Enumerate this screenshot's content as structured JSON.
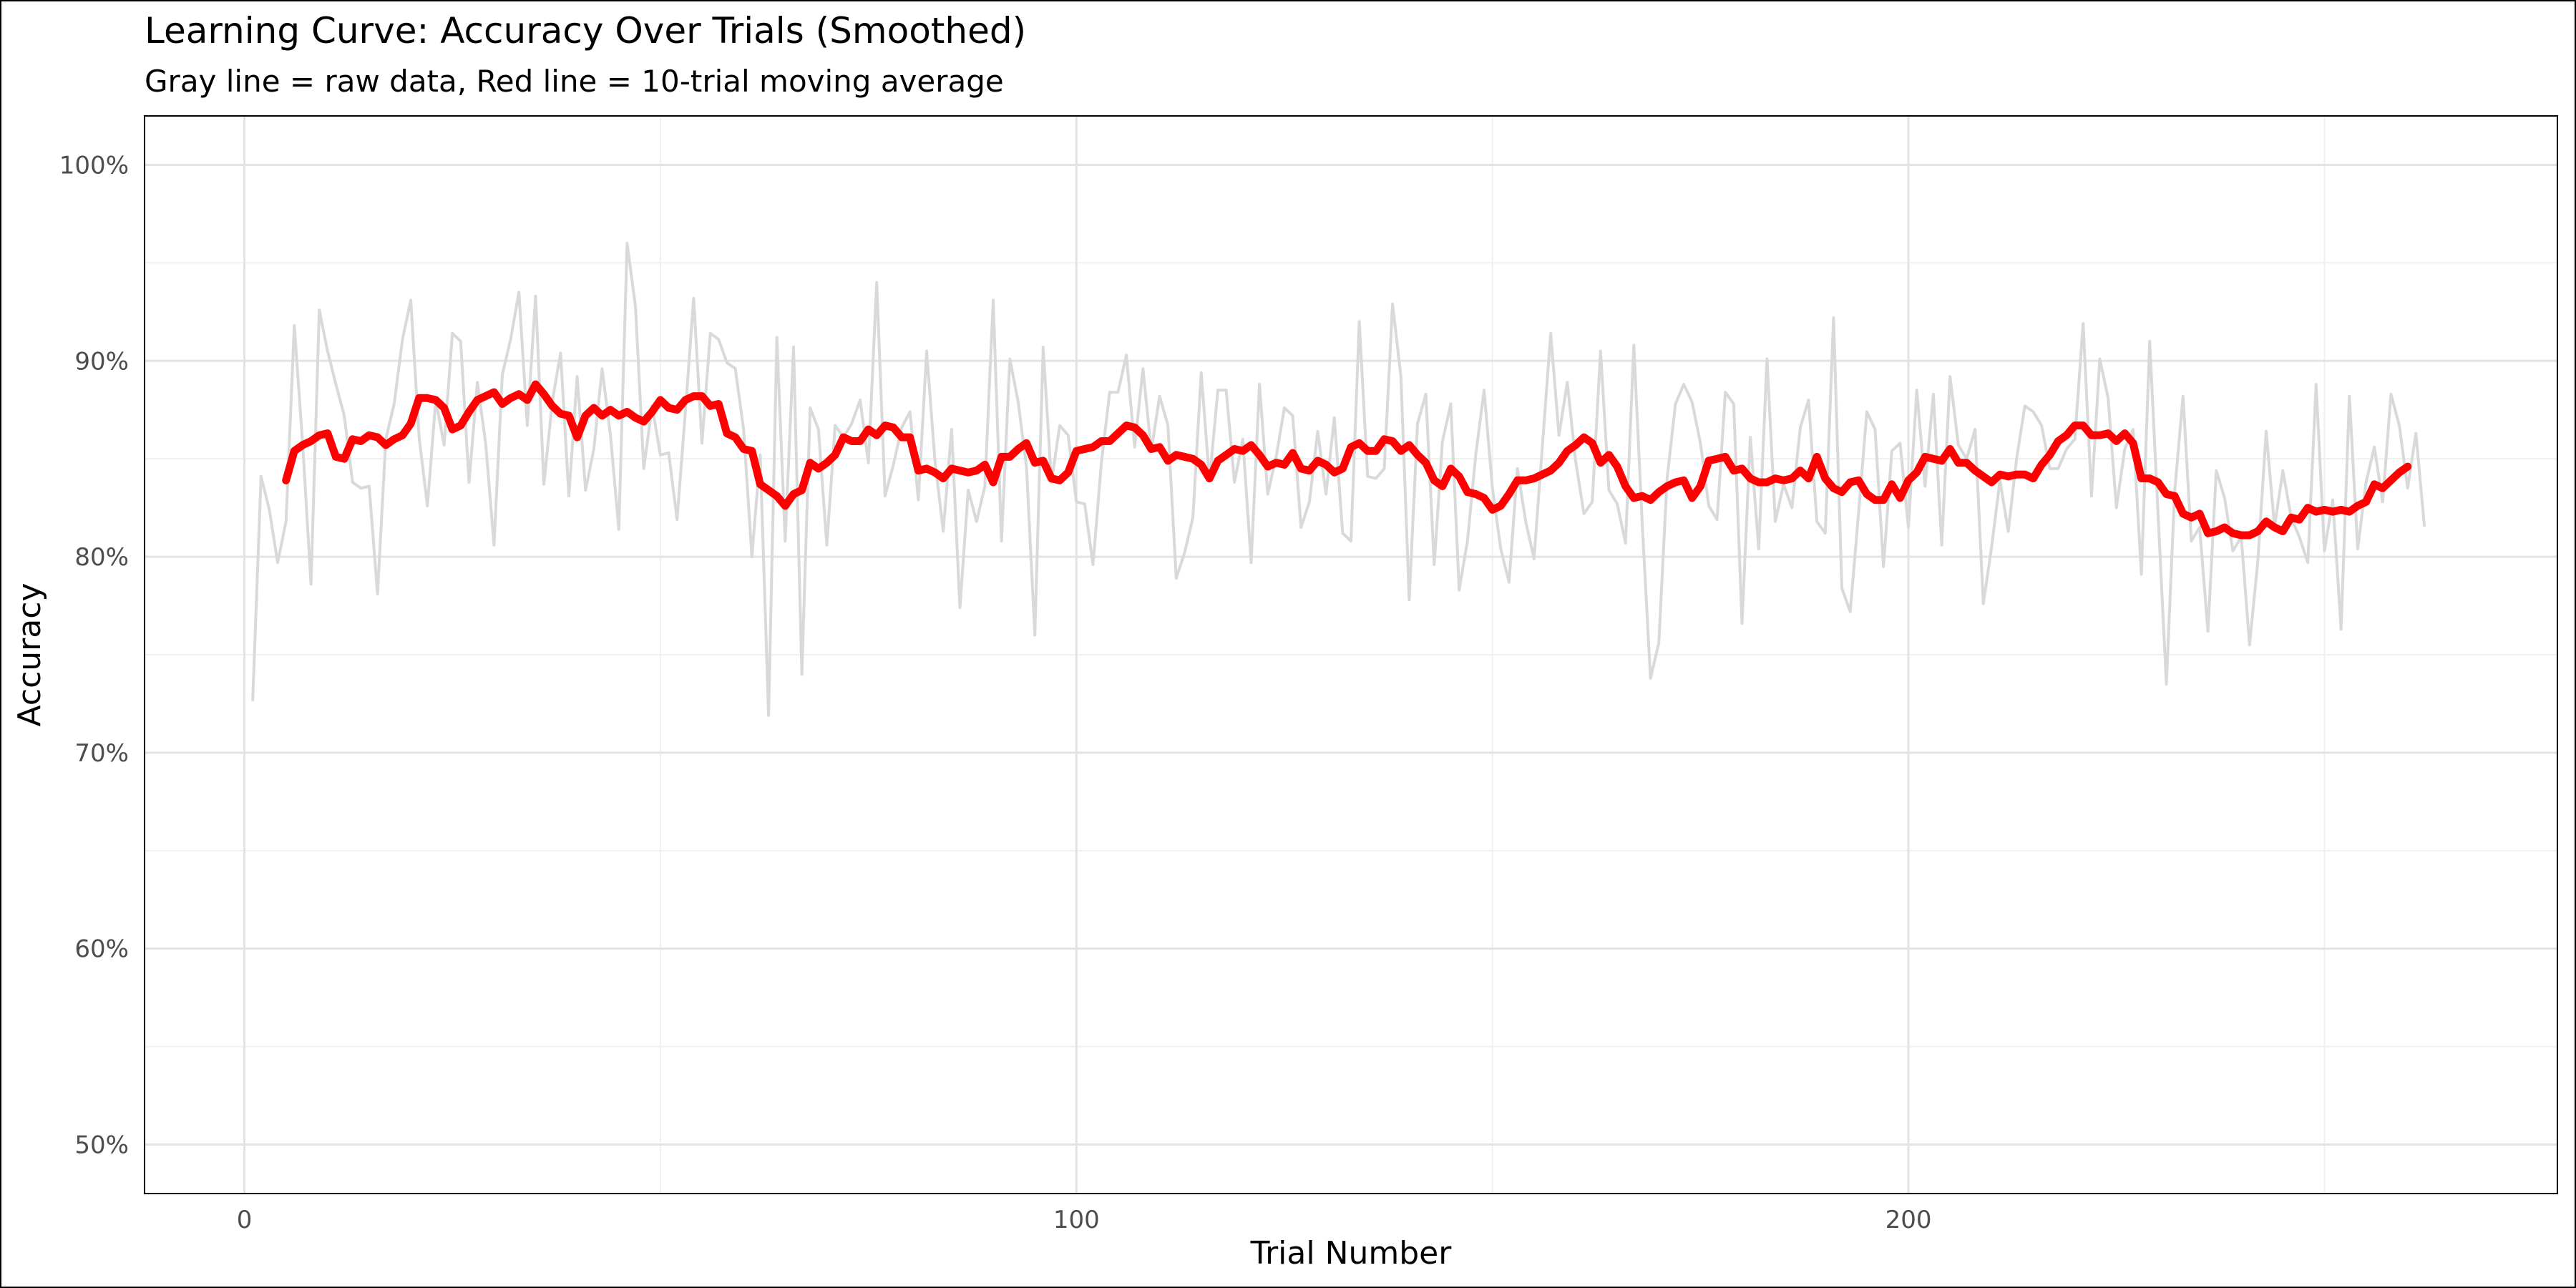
{
  "chart_data": {
    "type": "line",
    "title": "Learning Curve: Accuracy Over Trials (Smoothed)",
    "subtitle": "Gray line = raw data, Red line = 10-trial moving average",
    "xlabel": "Trial Number",
    "ylabel": "Accuracy",
    "xlim": [
      -12,
      278
    ],
    "ylim": [
      0.475,
      1.025
    ],
    "x_ticks": [
      0,
      100,
      200
    ],
    "x_tick_labels": [
      "0",
      "100",
      "200"
    ],
    "y_ticks": [
      0.5,
      0.6,
      0.7,
      0.8,
      0.9,
      1.0
    ],
    "y_tick_labels": [
      "50%",
      "60%",
      "70%",
      "80%",
      "90%",
      "100%"
    ],
    "grid": true,
    "series": [
      {
        "role": "raw",
        "color": "#d9d9d9",
        "x_start": 1,
        "values": [
          0.727,
          0.841,
          0.824,
          0.797,
          0.818,
          0.918,
          0.858,
          0.786,
          0.926,
          0.905,
          0.888,
          0.872,
          0.838,
          0.835,
          0.836,
          0.781,
          0.86,
          0.878,
          0.911,
          0.931,
          0.861,
          0.826,
          0.88,
          0.857,
          0.914,
          0.91,
          0.838,
          0.889,
          0.858,
          0.806,
          0.893,
          0.911,
          0.935,
          0.867,
          0.933,
          0.837,
          0.879,
          0.904,
          0.831,
          0.892,
          0.834,
          0.855,
          0.896,
          0.862,
          0.814,
          0.96,
          0.928,
          0.845,
          0.877,
          0.852,
          0.853,
          0.819,
          0.874,
          0.932,
          0.858,
          0.914,
          0.911,
          0.899,
          0.896,
          0.865,
          0.8,
          0.852,
          0.719,
          0.912,
          0.808,
          0.907,
          0.74,
          0.876,
          0.865,
          0.806,
          0.867,
          0.861,
          0.868,
          0.88,
          0.848,
          0.94,
          0.831,
          0.847,
          0.866,
          0.874,
          0.829,
          0.905,
          0.849,
          0.813,
          0.865,
          0.774,
          0.834,
          0.818,
          0.836,
          0.931,
          0.808,
          0.901,
          0.879,
          0.846,
          0.76,
          0.907,
          0.838,
          0.867,
          0.862,
          0.828,
          0.827,
          0.796,
          0.848,
          0.884,
          0.884,
          0.903,
          0.856,
          0.896,
          0.854,
          0.882,
          0.867,
          0.789,
          0.802,
          0.82,
          0.894,
          0.839,
          0.885,
          0.885,
          0.838,
          0.86,
          0.797,
          0.888,
          0.832,
          0.851,
          0.876,
          0.872,
          0.815,
          0.828,
          0.864,
          0.832,
          0.871,
          0.812,
          0.808,
          0.92,
          0.841,
          0.84,
          0.845,
          0.929,
          0.892,
          0.778,
          0.868,
          0.883,
          0.796,
          0.859,
          0.878,
          0.783,
          0.808,
          0.852,
          0.885,
          0.835,
          0.804,
          0.787,
          0.845,
          0.818,
          0.799,
          0.856,
          0.914,
          0.862,
          0.889,
          0.849,
          0.822,
          0.828,
          0.905,
          0.834,
          0.827,
          0.807,
          0.908,
          0.817,
          0.738,
          0.756,
          0.84,
          0.878,
          0.888,
          0.879,
          0.858,
          0.826,
          0.819,
          0.884,
          0.878,
          0.766,
          0.861,
          0.804,
          0.901,
          0.818,
          0.837,
          0.825,
          0.866,
          0.88,
          0.818,
          0.812,
          0.922,
          0.784,
          0.772,
          0.822,
          0.874,
          0.865,
          0.795,
          0.854,
          0.858,
          0.815,
          0.885,
          0.836,
          0.883,
          0.806,
          0.892,
          0.857,
          0.85,
          0.865,
          0.776,
          0.805,
          0.839,
          0.813,
          0.85,
          0.877,
          0.874,
          0.867,
          0.845,
          0.845,
          0.855,
          0.86,
          0.919,
          0.831,
          0.901,
          0.881,
          0.825,
          0.855,
          0.865,
          0.791,
          0.91,
          0.822,
          0.735,
          0.833,
          0.882,
          0.808,
          0.815,
          0.762,
          0.844,
          0.83,
          0.803,
          0.81,
          0.755,
          0.798,
          0.864,
          0.815,
          0.844,
          0.82,
          0.81,
          0.797,
          0.888,
          0.803,
          0.829,
          0.763,
          0.882,
          0.804,
          0.838,
          0.856,
          0.828,
          0.883,
          0.867,
          0.835,
          0.863,
          0.816
        ]
      },
      {
        "role": "moving_average",
        "color": "#ff0000",
        "x_start": 5,
        "values": [
          0.839,
          0.854,
          0.857,
          0.859,
          0.862,
          0.863,
          0.851,
          0.85,
          0.86,
          0.859,
          0.862,
          0.861,
          0.857,
          0.86,
          0.862,
          0.868,
          0.881,
          0.881,
          0.88,
          0.876,
          0.865,
          0.867,
          0.874,
          0.88,
          0.882,
          0.884,
          0.878,
          0.881,
          0.883,
          0.88,
          0.888,
          0.883,
          0.877,
          0.873,
          0.872,
          0.861,
          0.872,
          0.876,
          0.872,
          0.875,
          0.872,
          0.874,
          0.871,
          0.869,
          0.874,
          0.88,
          0.876,
          0.875,
          0.88,
          0.882,
          0.882,
          0.877,
          0.878,
          0.863,
          0.861,
          0.855,
          0.854,
          0.837,
          0.834,
          0.831,
          0.826,
          0.832,
          0.834,
          0.848,
          0.845,
          0.848,
          0.852,
          0.861,
          0.859,
          0.859,
          0.865,
          0.862,
          0.867,
          0.866,
          0.861,
          0.861,
          0.844,
          0.845,
          0.843,
          0.84,
          0.845,
          0.844,
          0.843,
          0.844,
          0.847,
          0.838,
          0.851,
          0.851,
          0.855,
          0.858,
          0.848,
          0.849,
          0.84,
          0.839,
          0.843,
          0.854,
          0.855,
          0.856,
          0.859,
          0.859,
          0.863,
          0.867,
          0.866,
          0.862,
          0.855,
          0.856,
          0.849,
          0.852,
          0.851,
          0.85,
          0.847,
          0.84,
          0.849,
          0.852,
          0.855,
          0.854,
          0.857,
          0.852,
          0.846,
          0.848,
          0.847,
          0.853,
          0.845,
          0.844,
          0.849,
          0.847,
          0.843,
          0.845,
          0.856,
          0.858,
          0.854,
          0.854,
          0.86,
          0.859,
          0.854,
          0.857,
          0.852,
          0.848,
          0.839,
          0.836,
          0.845,
          0.841,
          0.833,
          0.832,
          0.83,
          0.824,
          0.826,
          0.832,
          0.839,
          0.839,
          0.84,
          0.842,
          0.844,
          0.848,
          0.854,
          0.857,
          0.861,
          0.858,
          0.848,
          0.852,
          0.846,
          0.836,
          0.83,
          0.831,
          0.829,
          0.833,
          0.836,
          0.838,
          0.839,
          0.83,
          0.836,
          0.849,
          0.85,
          0.851,
          0.844,
          0.845,
          0.84,
          0.838,
          0.838,
          0.84,
          0.839,
          0.84,
          0.844,
          0.84,
          0.851,
          0.84,
          0.835,
          0.833,
          0.838,
          0.839,
          0.832,
          0.829,
          0.829,
          0.837,
          0.83,
          0.839,
          0.843,
          0.851,
          0.85,
          0.849,
          0.855,
          0.848,
          0.848,
          0.844,
          0.841,
          0.838,
          0.842,
          0.841,
          0.842,
          0.842,
          0.84,
          0.847,
          0.852,
          0.859,
          0.862,
          0.867,
          0.867,
          0.862,
          0.862,
          0.863,
          0.859,
          0.863,
          0.858,
          0.84,
          0.84,
          0.838,
          0.832,
          0.831,
          0.822,
          0.82,
          0.822,
          0.812,
          0.813,
          0.815,
          0.812,
          0.811,
          0.811,
          0.813,
          0.818,
          0.815,
          0.813,
          0.82,
          0.819,
          0.825,
          0.823,
          0.824,
          0.823,
          0.824,
          0.823,
          0.826,
          0.828,
          0.837,
          0.835,
          0.839,
          0.843,
          0.846
        ]
      }
    ]
  }
}
